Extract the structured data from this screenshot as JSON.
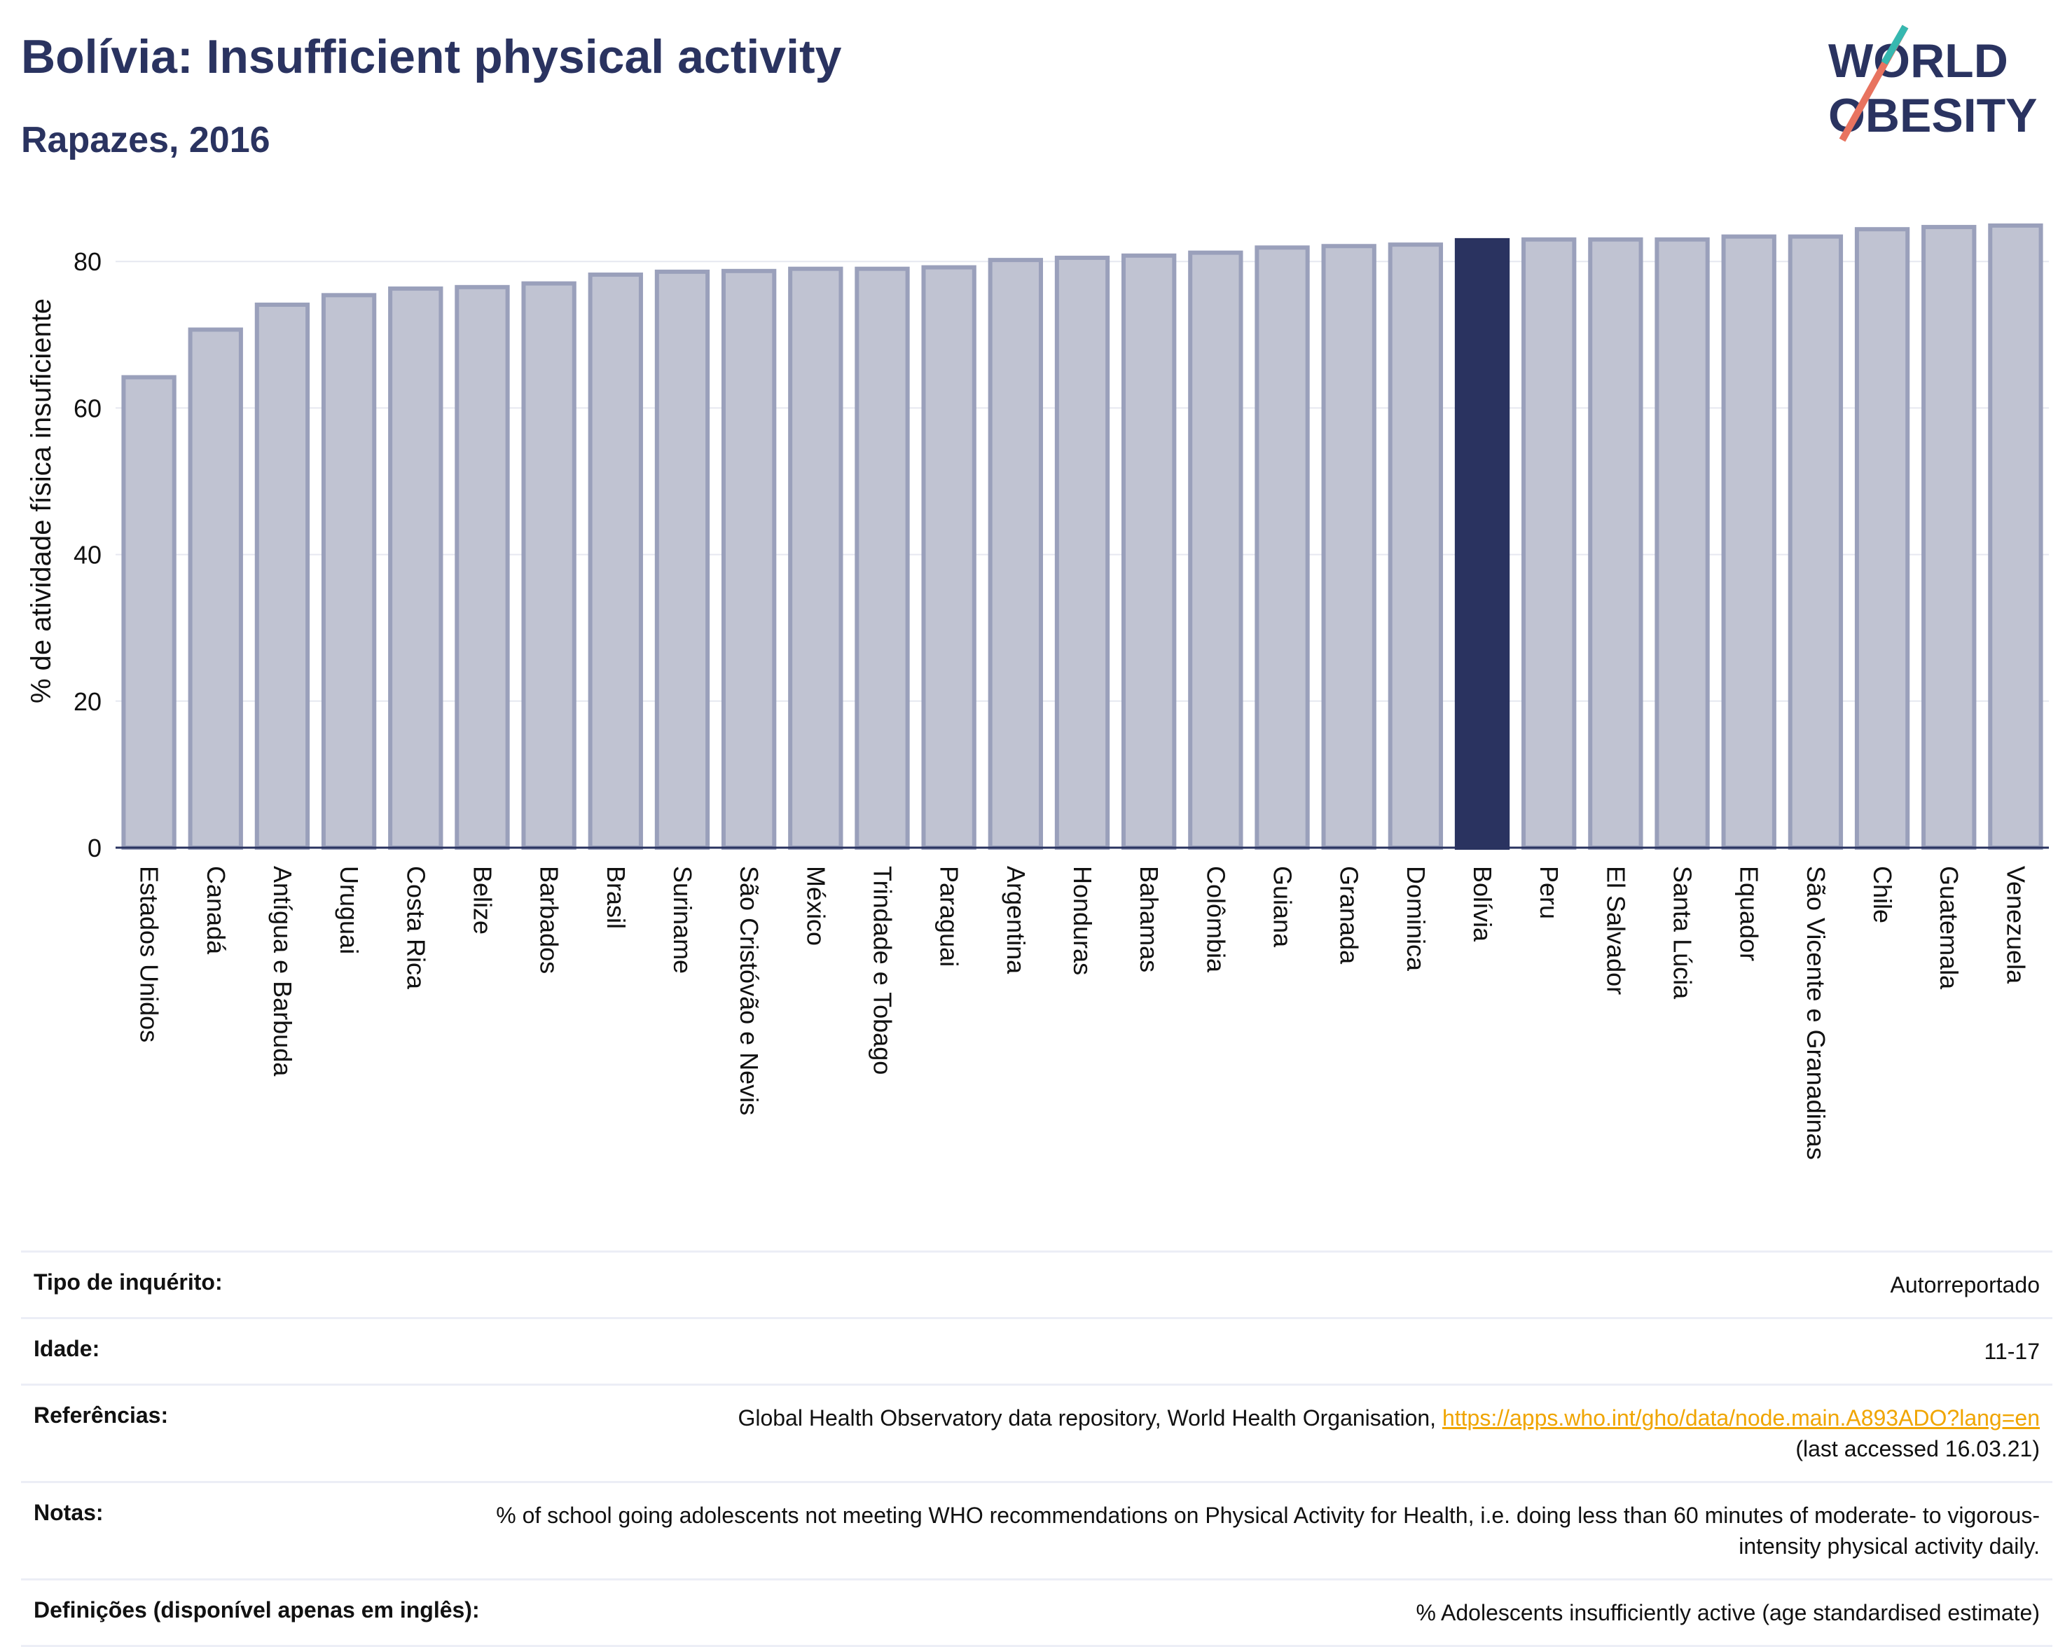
{
  "header": {
    "title": "Bolívia: Insufficient physical activity",
    "subtitle": "Rapazes, 2016"
  },
  "logo": {
    "line1": "WORLD",
    "line2": "OBESITY"
  },
  "colors": {
    "bar": "#c0c3d2",
    "bar_stroke": "#9aa0bb",
    "highlight": "#2a3360",
    "accent_teal": "#36b8b0",
    "accent_coral": "#e8735f",
    "link": "#f0a500"
  },
  "chart_data": {
    "type": "bar",
    "ylabel": "% de atividade física insuficiente",
    "ylim": [
      0,
      87
    ],
    "yticks": [
      0,
      20,
      40,
      60,
      80
    ],
    "grid": true,
    "highlight": "Bolívia",
    "categories": [
      "Estados Unidos",
      "Canadá",
      "Antígua e Barbuda",
      "Uruguai",
      "Costa Rica",
      "Belize",
      "Barbados",
      "Brasil",
      "Suriname",
      "São Cristóvão e Nevis",
      "México",
      "Trindade e Tobago",
      "Paraguai",
      "Argentina",
      "Honduras",
      "Bahamas",
      "Colômbia",
      "Guiana",
      "Granada",
      "Dominica",
      "Bolívia",
      "Peru",
      "El Salvador",
      "Santa Lúcia",
      "Equador",
      "São Vicente e Granadinas",
      "Chile",
      "Guatemala",
      "Venezuela"
    ],
    "values": [
      64.2,
      70.7,
      74.1,
      75.4,
      76.3,
      76.5,
      77.0,
      78.2,
      78.6,
      78.7,
      79.0,
      79.0,
      79.2,
      80.2,
      80.5,
      80.8,
      81.2,
      81.9,
      82.1,
      82.3,
      82.9,
      83.0,
      83.0,
      83.0,
      83.4,
      83.4,
      84.4,
      84.7,
      84.9
    ]
  },
  "meta": {
    "rows": [
      {
        "label": "Tipo de inquérito:",
        "value": "Autorreportado"
      },
      {
        "label": "Idade:",
        "value": "11-17"
      },
      {
        "label": "Referências:",
        "value": "Global Health Observatory data repository, World Health Organisation, ",
        "link": "https://apps.who.int/gho/data/node.main.A893ADO?lang=en",
        "value2": "(last accessed 16.03.21)"
      },
      {
        "label": "Notas:",
        "value": "% of school going adolescents not meeting WHO recommendations on Physical Activity for Health, i.e. doing less than 60 minutes of moderate- to vigorous-intensity physical activity daily."
      },
      {
        "label": "Definições (disponível apenas em inglês):",
        "value": "% Adolescents insufficiently active (age standardised estimate)"
      }
    ]
  }
}
